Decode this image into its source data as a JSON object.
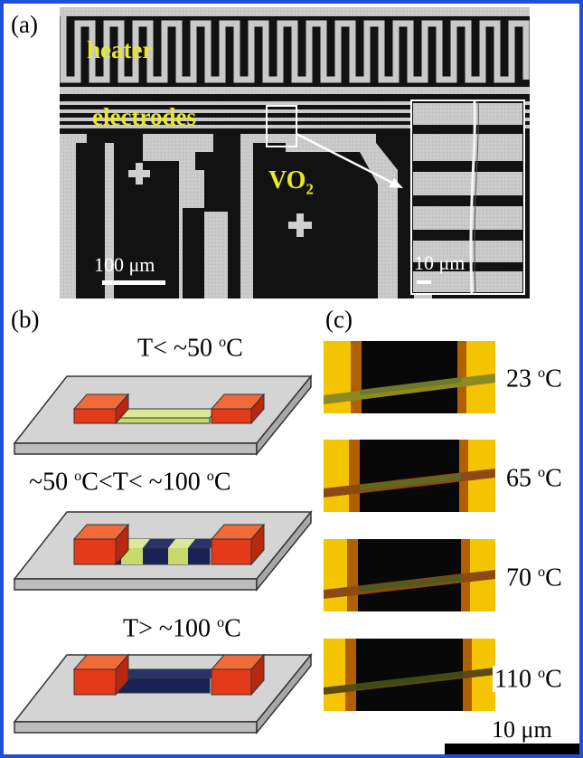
{
  "panels": {
    "a": {
      "label": "(a)",
      "heater_label": "heater",
      "electrodes_label": "electrodes",
      "vo2_label": "VO",
      "vo2_subscript": "2",
      "scalebar_main": "100 μm",
      "scalebar_inset": "10 μm"
    },
    "b": {
      "label": "(b)",
      "conditions": [
        {
          "pre": "T< ~50 ",
          "sup": "o",
          "post": "C"
        },
        {
          "pre": "~50 ",
          "sup": "o",
          "mid": "C<T< ~100 ",
          "sup2": "o",
          "post": "C"
        },
        {
          "pre": "T> ~100 ",
          "sup": "o",
          "post": "C"
        }
      ]
    },
    "c": {
      "label": "(c)",
      "temperatures": [
        {
          "num": "23 ",
          "sup": "o",
          "unit": "C"
        },
        {
          "num": "65 ",
          "sup": "o",
          "unit": "C"
        },
        {
          "num": "70 ",
          "sup": "o",
          "unit": "C"
        },
        {
          "num": "110 ",
          "sup": "o",
          "unit": "C"
        }
      ],
      "scalebar": "10 μm"
    }
  },
  "colors": {
    "border": "#1f4fd8",
    "label_yellow": "#e8e82a",
    "electrode_red": "#e43a1a",
    "vo2_insulating": "#c8d86a",
    "vo2_metallic": "#1a2255"
  }
}
